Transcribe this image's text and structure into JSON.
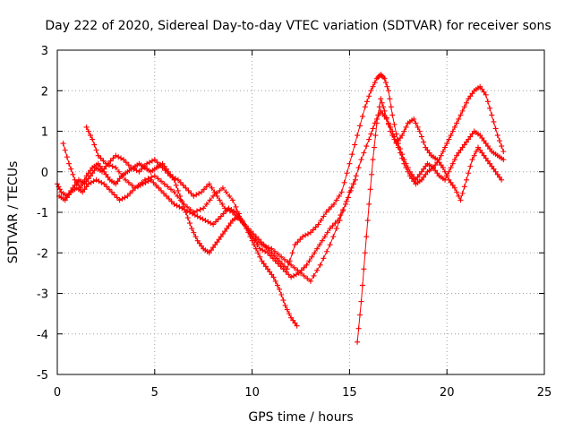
{
  "chart_data": {
    "type": "scatter",
    "title": "Day 222 of 2020, Sidereal Day-to-day VTEC variation (SDTVAR) for receiver sons",
    "xlabel": "GPS time / hours",
    "ylabel": "SDTVAR / TECUs",
    "xlim": [
      0,
      25
    ],
    "ylim": [
      -5,
      3
    ],
    "xticks": [
      0,
      5,
      10,
      15,
      20,
      25
    ],
    "yticks": [
      -5,
      -4,
      -3,
      -2,
      -1,
      0,
      1,
      2,
      3
    ],
    "grid": true,
    "marker": "+",
    "color": "#ff0000",
    "series": [
      {
        "name": "trace-1",
        "x": [
          0.0,
          0.2,
          0.5,
          0.8,
          1.1,
          1.4,
          1.7,
          2.0,
          2.3,
          2.6,
          3.0,
          3.4,
          3.8,
          4.2,
          4.6,
          5.0,
          5.4,
          5.8,
          6.2,
          6.6,
          7.0,
          7.4,
          7.8,
          8.2,
          8.6,
          9.0,
          9.4,
          9.8,
          10.2,
          10.6,
          11.0,
          11.4,
          11.8,
          12.2,
          12.6,
          13.0,
          13.4,
          13.8,
          14.2,
          14.6,
          15.0,
          15.4,
          15.8,
          16.1,
          16.4,
          16.6,
          16.8,
          17.0,
          17.2,
          17.5,
          17.8,
          18.1,
          18.4,
          18.7,
          19.0,
          19.3,
          19.6,
          19.9,
          20.2,
          20.5,
          20.8,
          21.1,
          21.4,
          21.7,
          22.0,
          22.3,
          22.6,
          22.9
        ],
        "y": [
          -0.3,
          -0.5,
          -0.6,
          -0.4,
          -0.2,
          -0.3,
          -0.1,
          0.1,
          0.0,
          0.2,
          0.4,
          0.3,
          0.1,
          0.0,
          0.2,
          0.3,
          0.1,
          -0.1,
          -0.2,
          -0.4,
          -0.6,
          -0.5,
          -0.3,
          -0.6,
          -0.9,
          -1.0,
          -1.2,
          -1.4,
          -1.6,
          -1.8,
          -2.0,
          -2.2,
          -2.4,
          -1.8,
          -1.6,
          -1.5,
          -1.3,
          -1.0,
          -0.8,
          -0.5,
          0.2,
          0.9,
          1.6,
          2.0,
          2.3,
          2.4,
          2.3,
          2.0,
          1.4,
          0.7,
          0.3,
          0.0,
          -0.2,
          0.0,
          0.2,
          0.1,
          0.3,
          0.6,
          0.9,
          1.2,
          1.5,
          1.8,
          2.0,
          2.1,
          1.9,
          1.4,
          0.9,
          0.5
        ]
      },
      {
        "name": "trace-2",
        "x": [
          0.1,
          0.4,
          0.7,
          1.0,
          1.3,
          1.6,
          2.0,
          2.4,
          2.8,
          3.2,
          3.6,
          4.0,
          4.4,
          4.8,
          5.2,
          5.6,
          6.0,
          6.4,
          6.8,
          7.2,
          7.6,
          8.0,
          8.4,
          8.8,
          9.2,
          9.6,
          10.0,
          10.4,
          10.8,
          11.2,
          11.6,
          12.0,
          12.4,
          12.8,
          13.2,
          13.6,
          14.0,
          14.4,
          14.8,
          15.2,
          15.6,
          16.0,
          16.3,
          16.6,
          16.9,
          17.2,
          17.5,
          17.8,
          18.1,
          18.4,
          18.7,
          19.0,
          19.3,
          19.6,
          19.9,
          20.2,
          20.5,
          20.8,
          21.1,
          21.4,
          21.7,
          22.0,
          22.3,
          22.6,
          22.9
        ],
        "y": [
          -0.6,
          -0.7,
          -0.5,
          -0.4,
          -0.5,
          -0.3,
          -0.2,
          -0.3,
          -0.5,
          -0.7,
          -0.6,
          -0.4,
          -0.3,
          -0.2,
          -0.4,
          -0.6,
          -0.8,
          -0.9,
          -1.0,
          -1.1,
          -1.2,
          -1.3,
          -1.1,
          -0.9,
          -1.0,
          -1.3,
          -1.6,
          -1.9,
          -2.0,
          -2.2,
          -2.4,
          -2.6,
          -2.5,
          -2.3,
          -2.0,
          -1.7,
          -1.4,
          -1.2,
          -0.8,
          -0.3,
          0.3,
          0.8,
          1.2,
          1.5,
          1.3,
          1.0,
          0.6,
          0.2,
          -0.1,
          -0.3,
          -0.2,
          0.0,
          0.1,
          -0.1,
          -0.2,
          0.1,
          0.4,
          0.6,
          0.8,
          1.0,
          0.9,
          0.7,
          0.5,
          0.4,
          0.3
        ]
      },
      {
        "name": "trace-3",
        "x": [
          0.3,
          0.6,
          0.9,
          1.2,
          1.5,
          1.8,
          2.1,
          2.4,
          2.7,
          3.0,
          3.3,
          3.6,
          3.9,
          4.2,
          4.5,
          4.8,
          5.1,
          5.4,
          5.7,
          6.0,
          6.3,
          6.6,
          6.9,
          7.2,
          7.5,
          7.8,
          8.1,
          8.4,
          8.7,
          9.0,
          9.3,
          9.6,
          9.9,
          10.2,
          10.5,
          10.8,
          11.1,
          11.4,
          11.7,
          12.0,
          12.3
        ],
        "y": [
          0.7,
          0.2,
          -0.2,
          -0.4,
          -0.1,
          0.1,
          0.2,
          0.0,
          -0.2,
          -0.3,
          -0.1,
          0.0,
          0.1,
          0.2,
          0.1,
          0.0,
          0.1,
          0.2,
          0.0,
          -0.2,
          -0.6,
          -1.0,
          -1.4,
          -1.7,
          -1.9,
          -2.0,
          -1.8,
          -1.6,
          -1.4,
          -1.2,
          -1.1,
          -1.3,
          -1.6,
          -1.9,
          -2.2,
          -2.4,
          -2.6,
          -2.9,
          -3.3,
          -3.6,
          -3.8
        ]
      },
      {
        "name": "trace-4",
        "x": [
          1.5,
          1.8,
          2.1,
          2.5,
          3.0,
          3.5,
          4.0,
          4.5,
          5.0,
          5.5,
          6.0,
          6.5,
          7.0,
          7.5,
          8.0,
          8.5,
          9.0,
          9.5,
          10.0,
          10.5,
          11.0,
          11.5,
          12.0,
          12.5,
          13.0,
          13.5,
          14.0,
          14.5,
          15.0,
          15.3
        ],
        "y": [
          1.1,
          0.8,
          0.4,
          0.2,
          0.1,
          -0.2,
          -0.4,
          -0.2,
          -0.1,
          -0.3,
          -0.5,
          -0.8,
          -1.0,
          -0.9,
          -0.6,
          -0.4,
          -0.7,
          -1.2,
          -1.6,
          -1.8,
          -1.9,
          -2.1,
          -2.3,
          -2.5,
          -2.7,
          -2.3,
          -1.8,
          -1.2,
          -0.5,
          -0.2
        ]
      },
      {
        "name": "trace-5",
        "x": [
          15.4,
          15.6,
          15.8,
          16.0,
          16.2,
          16.4,
          16.6,
          16.8,
          17.1,
          17.4,
          17.7,
          18.0,
          18.3,
          18.6,
          18.9,
          19.2,
          19.5,
          19.8,
          20.1,
          20.4,
          20.7,
          21.0,
          21.3,
          21.6,
          21.9,
          22.2,
          22.5,
          22.8
        ],
        "y": [
          -4.2,
          -3.2,
          -2.0,
          -0.8,
          0.3,
          1.2,
          1.8,
          1.5,
          1.0,
          0.7,
          0.9,
          1.2,
          1.3,
          1.0,
          0.6,
          0.4,
          0.3,
          0.1,
          -0.2,
          -0.4,
          -0.7,
          -0.2,
          0.3,
          0.6,
          0.4,
          0.2,
          0.0,
          -0.2
        ]
      }
    ]
  }
}
